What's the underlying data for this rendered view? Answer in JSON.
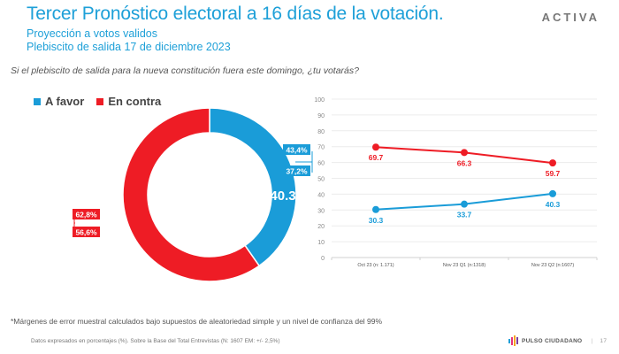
{
  "header": {
    "title": "Tercer Pronóstico electoral a 16 días de la votación.",
    "subtitle1": "Proyección a votos validos",
    "subtitle2": "Plebiscito de salida 17 de diciembre 2023",
    "brand": "ACTIVA"
  },
  "question": "Si el plebiscito de salida para la nueva constitución fuera este domingo, ¿tu votarás?",
  "colors": {
    "favor": "#1a9cd8",
    "contra": "#ee1c25",
    "title": "#1ea0d8"
  },
  "legend": [
    {
      "label": "A favor",
      "color": "#1a9cd8"
    },
    {
      "label": "En contra",
      "color": "#ee1c25"
    }
  ],
  "chart_data": [
    {
      "type": "pie",
      "variant": "donut",
      "title": "",
      "slices": [
        {
          "name": "A favor",
          "value": 40.3,
          "label": "40.3",
          "color": "#1a9cd8",
          "range_high": "43,4%",
          "range_low": "37,2%"
        },
        {
          "name": "En contra",
          "value": 59.7,
          "label": "59.7",
          "color": "#ee1c25",
          "range_high": "62,8%",
          "range_low": "56,6%"
        }
      ]
    },
    {
      "type": "line",
      "title": "",
      "xlabel": "",
      "ylabel": "",
      "categories": [
        "Oct 23 (n: 1.171)",
        "Nov 23 Q1 (n:1318)",
        "Nov 23 Q2 (n:1607)"
      ],
      "ylim": [
        0,
        100
      ],
      "yticks": [
        0,
        10,
        20,
        30,
        40,
        50,
        60,
        70,
        80,
        90,
        100
      ],
      "grid": true,
      "series": [
        {
          "name": "En contra",
          "color": "#ee1c25",
          "values": [
            69.7,
            66.3,
            59.7
          ],
          "labels": [
            "69.7",
            "66.3",
            "59.7"
          ]
        },
        {
          "name": "A favor",
          "color": "#1a9cd8",
          "values": [
            30.3,
            33.7,
            40.3
          ],
          "labels": [
            "30.3",
            "33.7",
            "40.3"
          ]
        }
      ]
    }
  ],
  "footnote": "*Márgenes de error muestral calculados bajo supuestos de aleatoriedad simple y un nivel de confianza del 99%",
  "source": "Datos expresados en porcentajes (%). Sobre la Base del Total Entrevistas (N: 1607  EM: +/- 2,5%)",
  "footer": {
    "brand": "PULSO CIUDADANO",
    "separator": "|",
    "page": "17"
  }
}
